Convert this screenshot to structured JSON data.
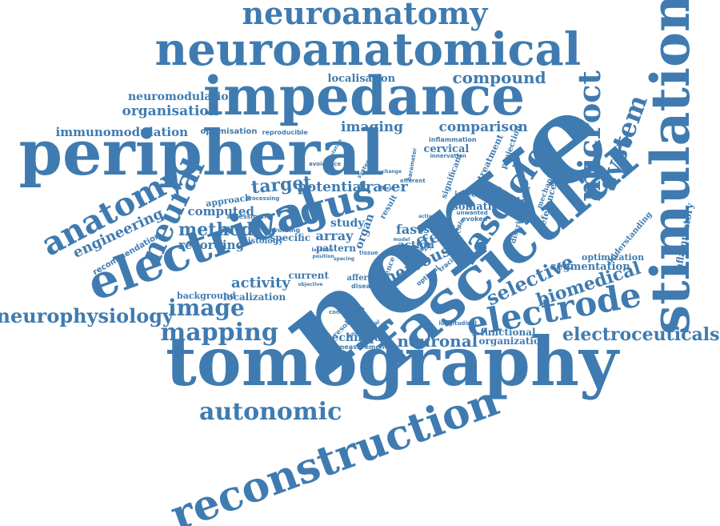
{
  "colors": {
    "word": "#3f7bb0",
    "background": "#ffffff"
  },
  "words": [
    "neuroanatomy",
    "neuroanatomical",
    "impedance",
    "peripheral",
    "nerve",
    "tomography",
    "stimulation",
    "fascicular",
    "electrical",
    "reconstruction",
    "electrode",
    "vagus",
    "anatomy",
    "microct",
    "system",
    "fascicle",
    "neural",
    "autonomic",
    "mapping",
    "image",
    "neurophysiology",
    "electroceuticals",
    "selective",
    "biomedical",
    "compound",
    "localisation",
    "organisation",
    "neuromodulation",
    "immunomodulation",
    "optimisation",
    "reproducible",
    "imaging",
    "comparison",
    "target",
    "potential",
    "tracer",
    "method",
    "recording",
    "computed",
    "engineering",
    "recommendation",
    "activity",
    "localization",
    "background",
    "nervous",
    "effect",
    "neuronal",
    "technique",
    "measurement",
    "sciatic",
    "fast",
    "array",
    "study",
    "action",
    "result",
    "histology",
    "assessment",
    "approach",
    "processing",
    "avoiding",
    "specific",
    "current",
    "objective",
    "afferent",
    "disease",
    "pattern",
    "organ",
    "cervical",
    "innervation",
    "inflammation",
    "injection",
    "evoked",
    "unwanted",
    "somatic",
    "reference",
    "discrimination",
    "understanding",
    "optimization",
    "segmentation",
    "inflammatory",
    "functional",
    "organization",
    "longitudinal",
    "projection",
    "treatment",
    "mechanism",
    "significant",
    "therapy",
    "tracing",
    "optimal",
    "difference",
    "resolution",
    "anatomical",
    "conclusion",
    "rationale",
    "efferent",
    "systemic",
    "parameter",
    "power",
    "tissue",
    "spacing",
    "position",
    "location",
    "avoidance",
    "simulation",
    "change",
    "fibre",
    "activation",
    "model"
  ]
}
